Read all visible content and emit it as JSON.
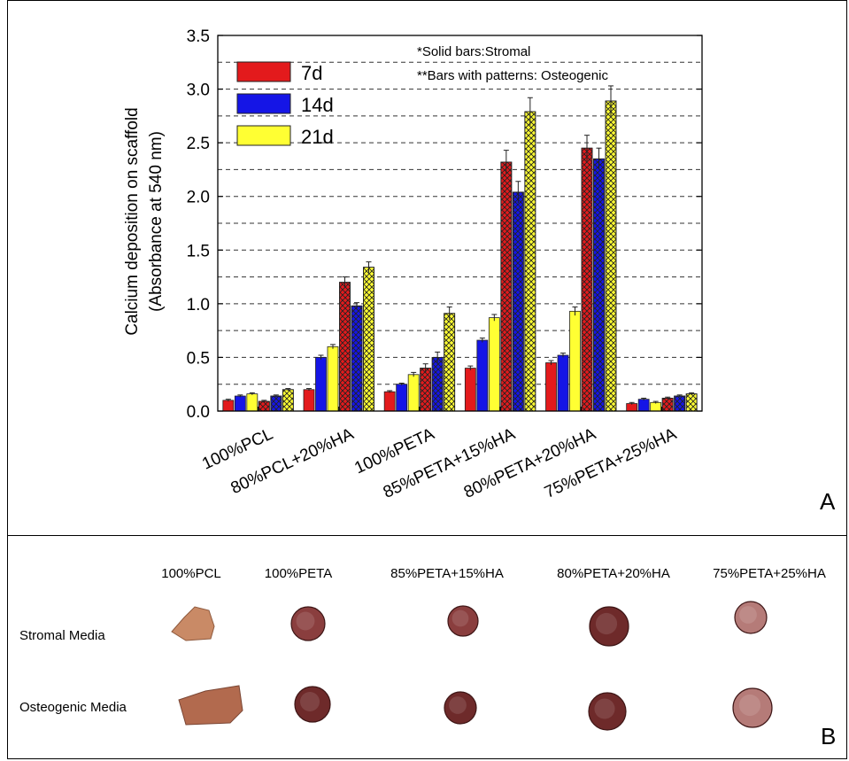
{
  "chart_data": {
    "type": "bar",
    "ylabel": "Calcium deposition on scaffold",
    "ylabel2": "(Absorbance at 540 nm)",
    "ylim": [
      0,
      3.5
    ],
    "yticks": [
      "0.0",
      "0.5",
      "1.0",
      "1.5",
      "2.0",
      "2.5",
      "3.0",
      "3.5"
    ],
    "grid": "dashed horizontal",
    "categories": [
      "100%PCL",
      "80%PCL+20%HA",
      "100%PETA",
      "85%PETA+15%HA",
      "80%PETA+20%HA",
      "75%PETA+25%HA"
    ],
    "legend": {
      "placement": "top-left",
      "entries": [
        {
          "label": "7d",
          "color": "#e31a1c"
        },
        {
          "label": "14d",
          "color": "#1515e6"
        },
        {
          "label": "21d",
          "color": "#ffff33"
        }
      ]
    },
    "notes": [
      "*Solid bars:Stromal",
      "**Bars with patterns: Osteogenic"
    ],
    "series": [
      {
        "medium": "Stromal",
        "day": "7d",
        "pattern": "solid",
        "color": "#e31a1c",
        "values": [
          0.1,
          0.2,
          0.18,
          0.4,
          0.45,
          0.07
        ],
        "errors": [
          0.01,
          0.01,
          0.01,
          0.02,
          0.02,
          0.01
        ]
      },
      {
        "medium": "Stromal",
        "day": "14d",
        "pattern": "solid",
        "color": "#1515e6",
        "values": [
          0.14,
          0.5,
          0.25,
          0.66,
          0.52,
          0.11
        ],
        "errors": [
          0.01,
          0.02,
          0.01,
          0.02,
          0.02,
          0.01
        ]
      },
      {
        "medium": "Stromal",
        "day": "21d",
        "pattern": "solid",
        "color": "#ffff33",
        "values": [
          0.16,
          0.6,
          0.34,
          0.87,
          0.93,
          0.08
        ],
        "errors": [
          0.01,
          0.02,
          0.02,
          0.03,
          0.04,
          0.01
        ]
      },
      {
        "medium": "Osteogenic",
        "day": "7d",
        "pattern": "crosshatch",
        "color": "#e31a1c",
        "values": [
          0.09,
          1.2,
          0.4,
          2.32,
          2.45,
          0.12
        ],
        "errors": [
          0.01,
          0.05,
          0.04,
          0.11,
          0.12,
          0.01
        ]
      },
      {
        "medium": "Osteogenic",
        "day": "14d",
        "pattern": "crosshatch",
        "color": "#1515e6",
        "values": [
          0.14,
          0.98,
          0.5,
          2.04,
          2.35,
          0.14
        ],
        "errors": [
          0.01,
          0.03,
          0.05,
          0.1,
          0.1,
          0.01
        ]
      },
      {
        "medium": "Osteogenic",
        "day": "21d",
        "pattern": "crosshatch",
        "color": "#ffff33",
        "values": [
          0.2,
          1.34,
          0.91,
          2.79,
          2.89,
          0.16
        ],
        "errors": [
          0.01,
          0.05,
          0.06,
          0.13,
          0.14,
          0.01
        ]
      }
    ]
  },
  "panel_a_label": "A",
  "panel_b_label": "B",
  "photo_panel": {
    "columns": [
      "100%PCL",
      "100%PETA",
      "85%PETA+15%HA",
      "80%PETA+20%HA",
      "75%PETA+25%HA"
    ],
    "rows": [
      "Stromal Media",
      "Osteogenic Media"
    ],
    "sample_colors": {
      "pcl": "#c98a66",
      "pcl_osteo": "#b26a4e",
      "dark": "#6e2a2a",
      "medium": "#8a3e3e",
      "light": "#b57b78"
    }
  }
}
